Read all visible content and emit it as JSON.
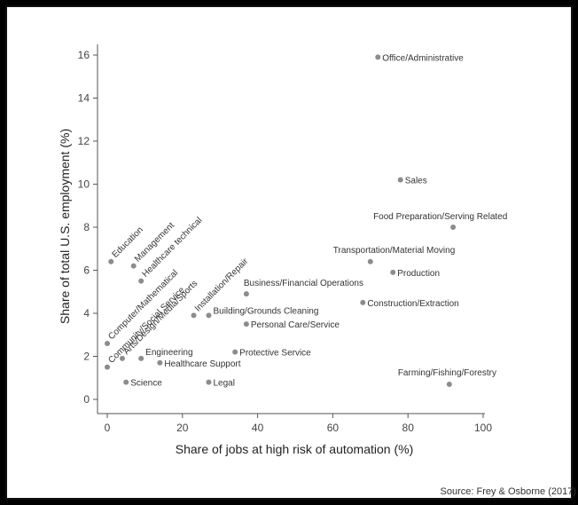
{
  "chart_data": {
    "type": "scatter",
    "title": "",
    "xlabel": "Share of jobs at high risk of automation (%)",
    "ylabel": "Share of total U.S. employment (%)",
    "xlim": [
      0,
      100
    ],
    "ylim": [
      0,
      16
    ],
    "xticks": [
      "0",
      "20",
      "40",
      "60",
      "80",
      "100"
    ],
    "yticks": [
      "0",
      "2",
      "4",
      "6",
      "8",
      "10",
      "12",
      "14",
      "16"
    ],
    "source": "Source: Frey & Osborne (2017)",
    "grid": false,
    "marker_color": "#8c8c8c",
    "points": [
      {
        "label": "Office/Administrative",
        "x": 72,
        "y": 15.9
      },
      {
        "label": "Sales",
        "x": 78,
        "y": 10.2
      },
      {
        "label": "Food Preparation/Serving Related",
        "x": 92,
        "y": 8.0
      },
      {
        "label": "Transportation/Material Moving",
        "x": 70,
        "y": 6.4
      },
      {
        "label": "Production",
        "x": 76,
        "y": 5.9
      },
      {
        "label": "Construction/Extraction",
        "x": 68,
        "y": 4.5
      },
      {
        "label": "Farming/Fishing/Forestry",
        "x": 91,
        "y": 0.7
      },
      {
        "label": "Business/Financial Operations",
        "x": 37,
        "y": 4.9
      },
      {
        "label": "Personal Care/Service",
        "x": 37,
        "y": 3.5
      },
      {
        "label": "Building/Grounds Cleaning",
        "x": 27,
        "y": 3.9
      },
      {
        "label": "Installation/Repair",
        "x": 23,
        "y": 3.9
      },
      {
        "label": "Protective Service",
        "x": 34,
        "y": 2.2
      },
      {
        "label": "Legal",
        "x": 27,
        "y": 0.8
      },
      {
        "label": "Healthcare Support",
        "x": 14,
        "y": 1.7
      },
      {
        "label": "Engineering",
        "x": 9,
        "y": 1.9
      },
      {
        "label": "Science",
        "x": 5,
        "y": 0.8
      },
      {
        "label": "Education",
        "x": 1,
        "y": 6.4
      },
      {
        "label": "Management",
        "x": 7,
        "y": 6.2
      },
      {
        "label": "Healthcare technical",
        "x": 9,
        "y": 5.5
      },
      {
        "label": "Computer/Mathematical",
        "x": 0,
        "y": 2.6
      },
      {
        "label": "Community/Social Service",
        "x": 0,
        "y": 1.5
      },
      {
        "label": "Arts/Design/Media/Sports",
        "x": 4,
        "y": 1.9
      }
    ]
  }
}
